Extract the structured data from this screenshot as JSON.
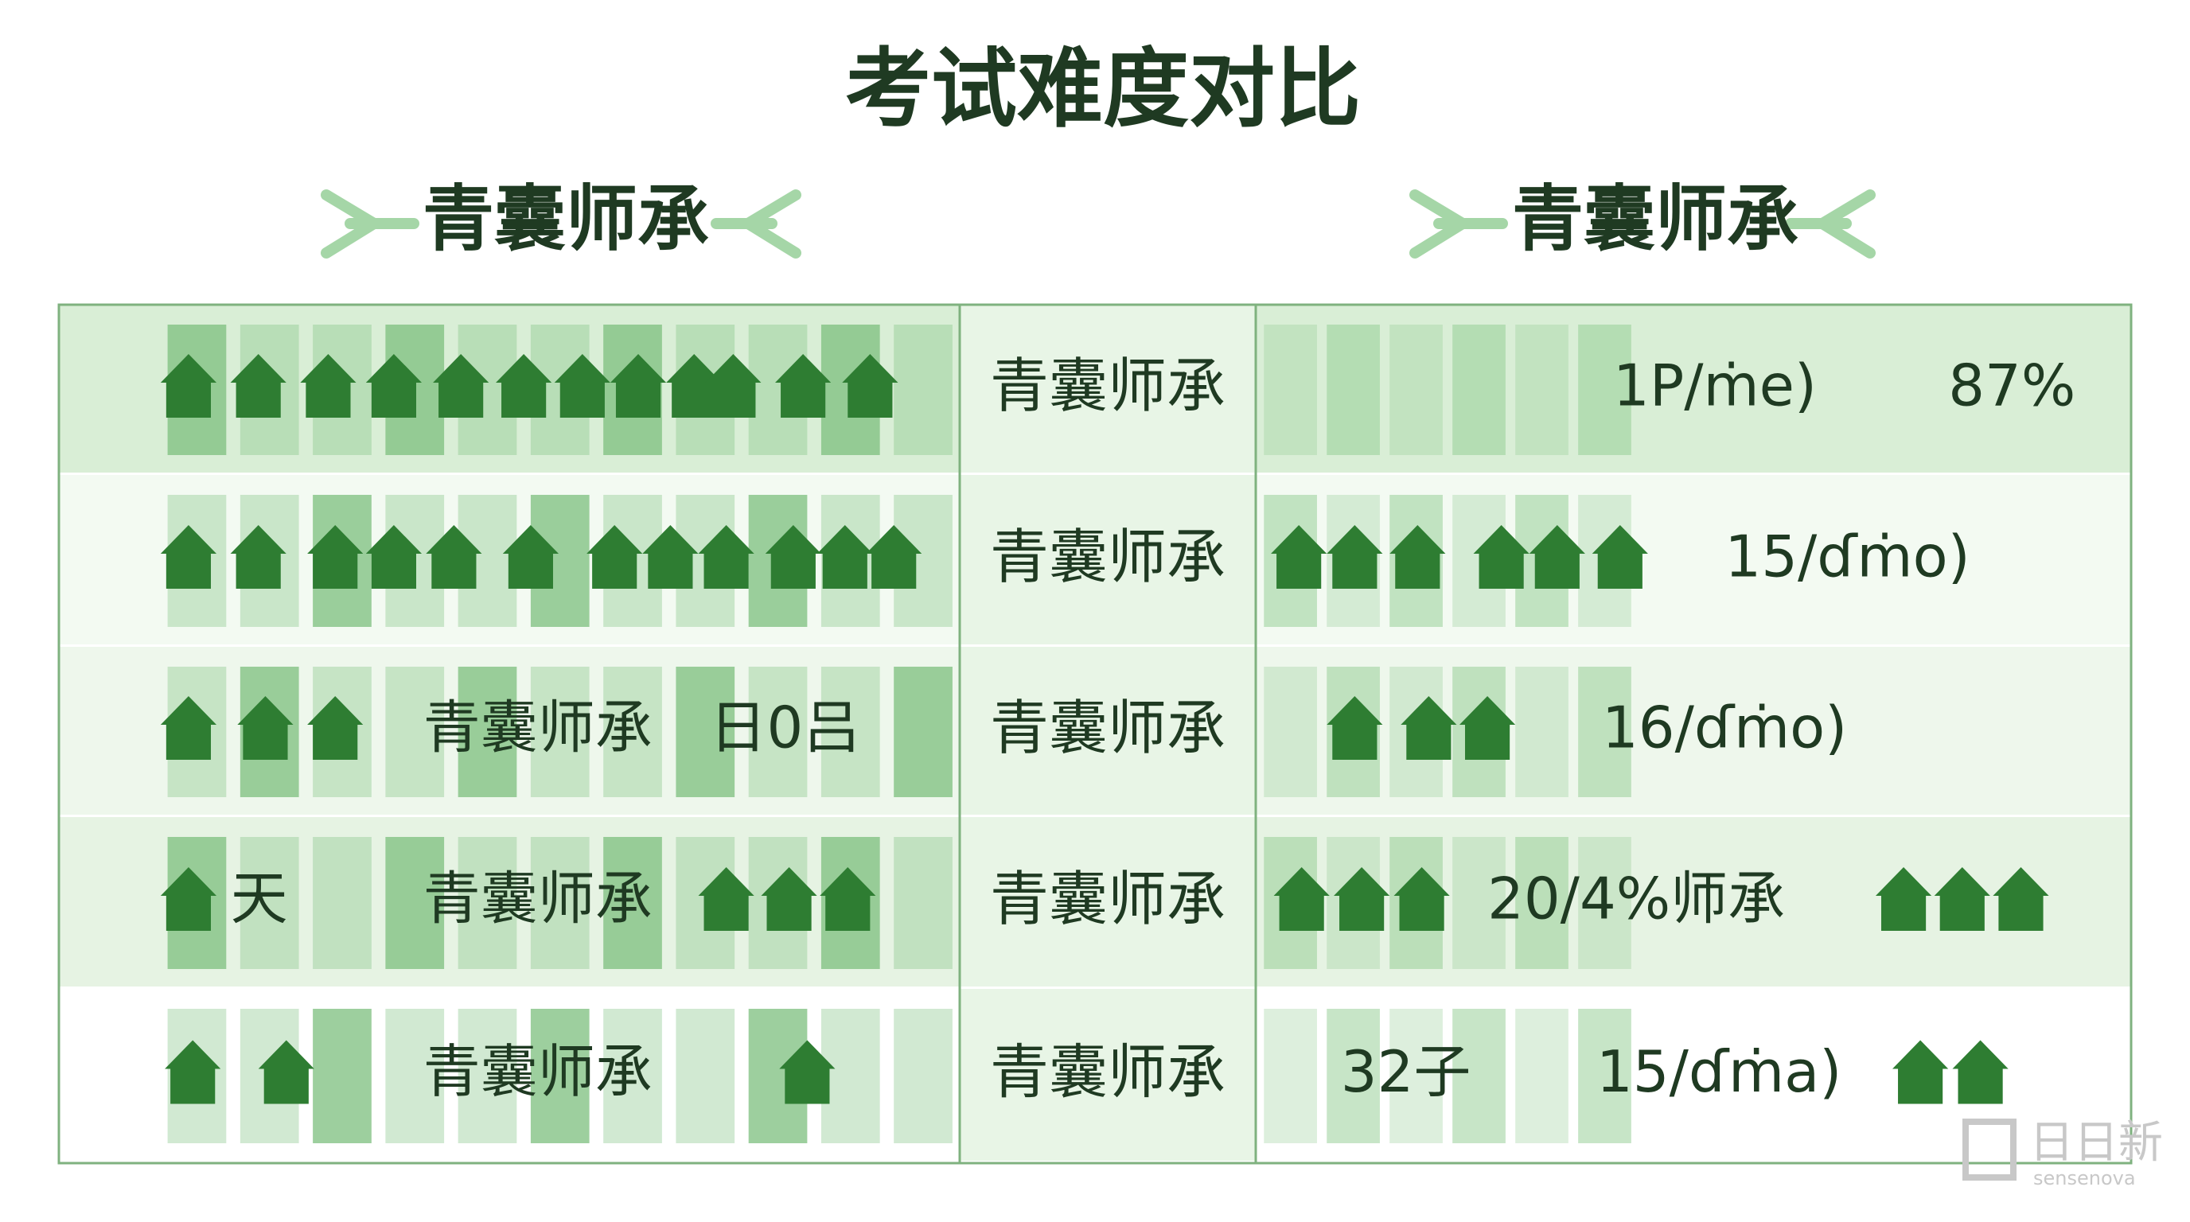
{
  "title": "考试难度对比",
  "headers": [
    "青囊师承",
    "青囊师承"
  ],
  "rows": [
    {
      "left": [],
      "middle": "青囊师承",
      "right": [
        "1P/ṁe)",
        "87%"
      ]
    },
    {
      "left": [],
      "middle": "青囊师承",
      "right": [
        "15/ɗṁo)"
      ]
    },
    {
      "left": [
        "青囊师承",
        "日0吕"
      ],
      "middle": "青囊师承",
      "right": [
        "16/ɗṁo)"
      ]
    },
    {
      "left": [
        "天",
        "青囊师承"
      ],
      "middle": "青囊师承",
      "right": [
        "20/4%师承"
      ]
    },
    {
      "left": [
        "青囊师承"
      ],
      "middle": "青囊师承",
      "right": [
        "32子",
        "15/ɗṁa)"
      ]
    }
  ],
  "watermark": {
    "brand": "日日新",
    "sub": "sensenova"
  }
}
